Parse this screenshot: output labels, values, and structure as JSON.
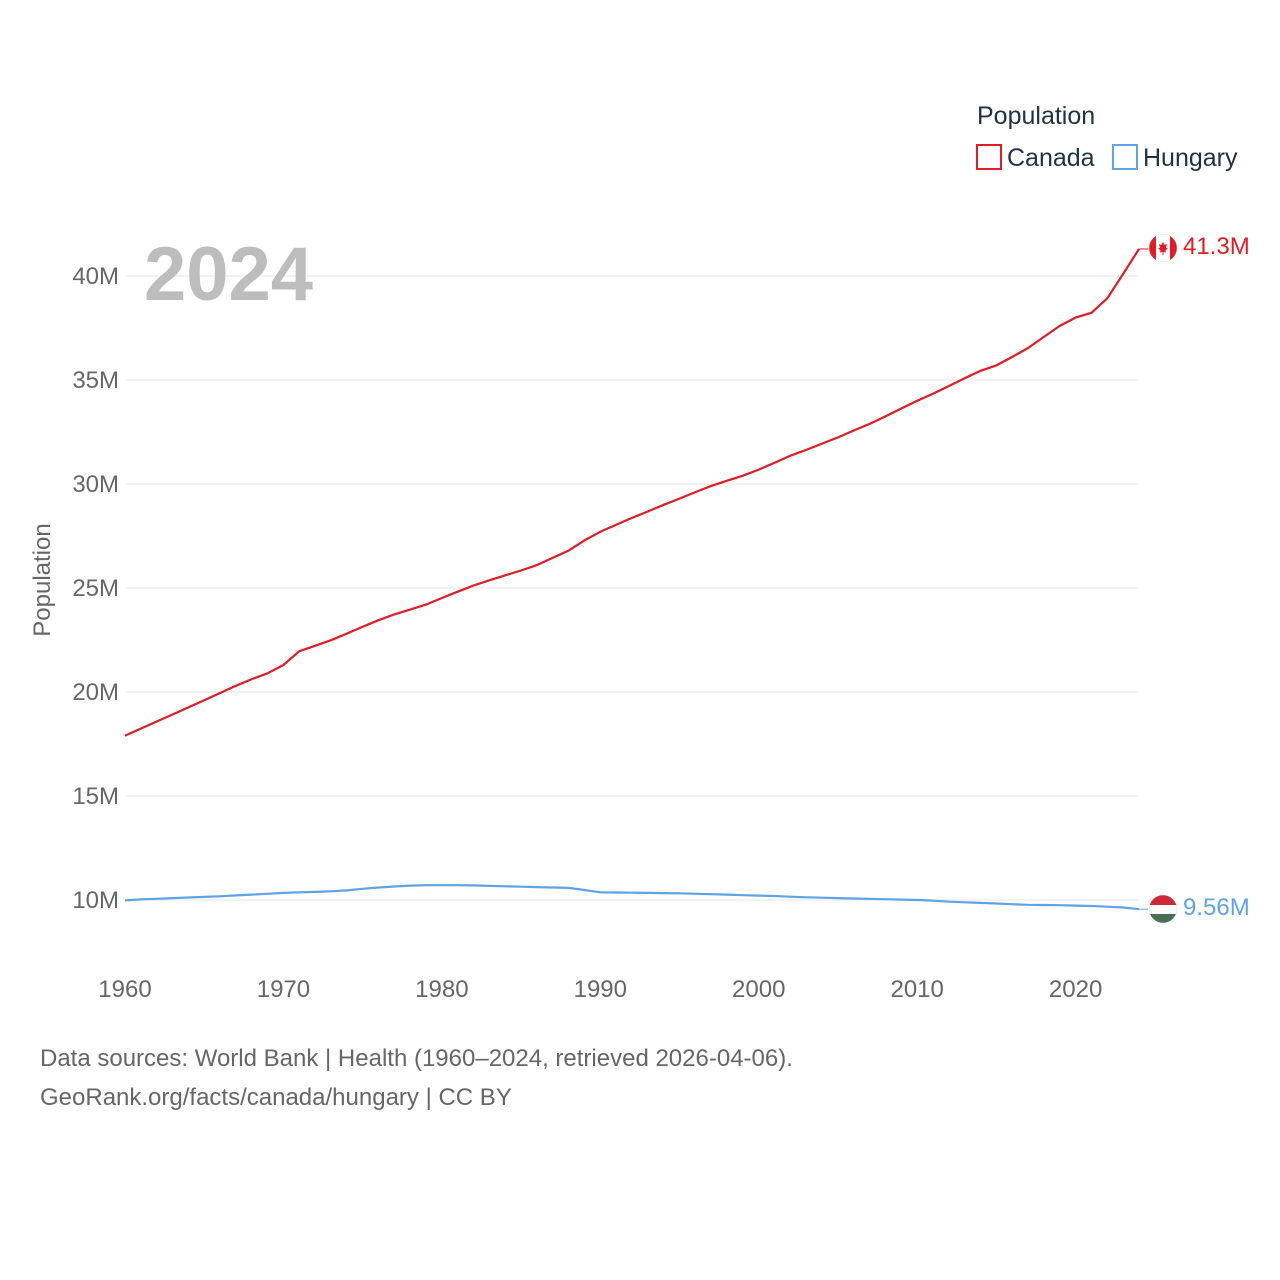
{
  "chart_data": {
    "type": "line",
    "title": "",
    "year_label": "2024",
    "ylabel": "Population",
    "xlabel": "",
    "xlim": [
      1960,
      2024
    ],
    "ylim": [
      7000000,
      42000000
    ],
    "x_ticks": [
      1960,
      1970,
      1980,
      1990,
      2000,
      2010,
      2020
    ],
    "y_ticks": [
      10000000,
      15000000,
      20000000,
      25000000,
      30000000,
      35000000,
      40000000
    ],
    "y_tick_labels": [
      "10M",
      "15M",
      "20M",
      "25M",
      "30M",
      "35M",
      "40M"
    ],
    "x_tick_labels": [
      "1960",
      "1970",
      "1980",
      "1990",
      "2000",
      "2010",
      "2020"
    ],
    "grid": true,
    "legend": {
      "title": "Population",
      "placement": "top-right"
    },
    "x": [
      1960,
      1961,
      1962,
      1963,
      1964,
      1965,
      1966,
      1967,
      1968,
      1969,
      1970,
      1971,
      1972,
      1973,
      1974,
      1975,
      1976,
      1977,
      1978,
      1979,
      1980,
      1981,
      1982,
      1983,
      1984,
      1985,
      1986,
      1987,
      1988,
      1989,
      1990,
      1991,
      1992,
      1993,
      1994,
      1995,
      1996,
      1997,
      1998,
      1999,
      2000,
      2001,
      2002,
      2003,
      2004,
      2005,
      2006,
      2007,
      2008,
      2009,
      2010,
      2011,
      2012,
      2013,
      2014,
      2015,
      2016,
      2017,
      2018,
      2019,
      2020,
      2021,
      2022,
      2023,
      2024
    ],
    "series": [
      {
        "name": "Canada",
        "color": "#e31b23",
        "end_label": "41.3M",
        "flag": "canada-flag-icon",
        "values": [
          17900000,
          18240000,
          18580000,
          18920000,
          19260000,
          19600000,
          19950000,
          20300000,
          20620000,
          20900000,
          21300000,
          21960000,
          22220000,
          22490000,
          22810000,
          23140000,
          23450000,
          23730000,
          23960000,
          24200000,
          24520000,
          24820000,
          25120000,
          25370000,
          25610000,
          25840000,
          26100000,
          26450000,
          26800000,
          27290000,
          27700000,
          28040000,
          28370000,
          28680000,
          28999000,
          29300000,
          29610000,
          29910000,
          30160000,
          30400000,
          30690000,
          31020000,
          31360000,
          31640000,
          31940000,
          32240000,
          32570000,
          32890000,
          33250000,
          33630000,
          34000000,
          34340000,
          34710000,
          35080000,
          35440000,
          35700000,
          36110000,
          36540000,
          37070000,
          37600000,
          38000000,
          38230000,
          38930000,
          40100000,
          41300000
        ]
      },
      {
        "name": "Hungary",
        "color": "#5ea3e3",
        "end_label": "9.56M",
        "flag": "hungary-flag-icon",
        "values": [
          9980000,
          10030000,
          10060000,
          10090000,
          10120000,
          10150000,
          10180000,
          10220000,
          10260000,
          10300000,
          10340000,
          10370000,
          10390000,
          10420000,
          10460000,
          10540000,
          10600000,
          10650000,
          10690000,
          10710000,
          10710000,
          10710000,
          10700000,
          10680000,
          10660000,
          10640000,
          10620000,
          10600000,
          10580000,
          10480000,
          10370000,
          10360000,
          10350000,
          10340000,
          10330000,
          10320000,
          10300000,
          10280000,
          10260000,
          10230000,
          10210000,
          10190000,
          10160000,
          10130000,
          10110000,
          10090000,
          10070000,
          10060000,
          10040000,
          10020000,
          10000000,
          9970000,
          9920000,
          9890000,
          9860000,
          9830000,
          9800000,
          9770000,
          9760000,
          9750000,
          9730000,
          9710000,
          9680000,
          9640000,
          9560000
        ]
      }
    ]
  },
  "footer": {
    "sources_line": "Data sources: World Bank | Health (1960–2024, retrieved 2026-04-06).",
    "credit_line": "GeoRank.org/facts/canada/hungary | CC BY"
  }
}
